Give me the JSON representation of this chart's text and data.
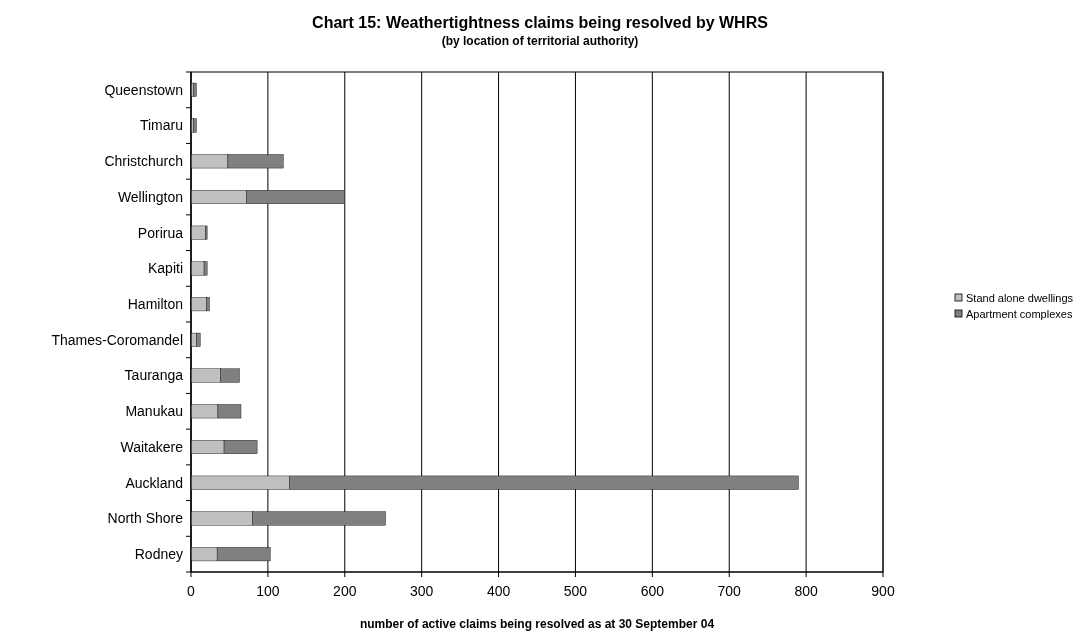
{
  "chart_data": {
    "type": "bar",
    "orientation": "horizontal",
    "stacked": true,
    "title": "Chart 15: Weathertightness claims being resolved by WHRS",
    "subtitle": "(by location of territorial authority)",
    "xlabel": "number of active claims being resolved as at 30 September 04",
    "categories": [
      "Queenstown",
      "Timaru",
      "Christchurch",
      "Wellington",
      "Porirua",
      "Kapiti",
      "Hamilton",
      "Thames-Coromandel",
      "Tauranga",
      "Manukau",
      "Waitakere",
      "Auckland",
      "North Shore",
      "Rodney"
    ],
    "series": [
      {
        "name": "Stand alone dwellings",
        "color": "#c0c0c0",
        "values": [
          3,
          3,
          48,
          72,
          19,
          17,
          20,
          7,
          38,
          35,
          43,
          128,
          80,
          34
        ]
      },
      {
        "name": "Apartment complexes",
        "color": "#808080",
        "values": [
          4,
          4,
          72,
          128,
          2,
          4,
          4,
          5,
          25,
          30,
          43,
          662,
          173,
          69
        ]
      }
    ],
    "xlim": [
      0,
      900
    ],
    "xticks": [
      0,
      100,
      200,
      300,
      400,
      500,
      600,
      700,
      800,
      900
    ],
    "grid": "x",
    "legend": "right"
  }
}
